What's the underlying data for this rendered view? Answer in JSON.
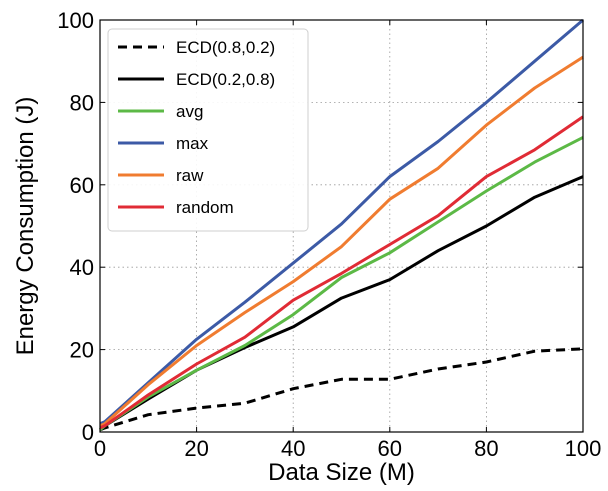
{
  "chart_data": {
    "type": "line",
    "xlabel": "Data Size (M)",
    "ylabel": "Energy Consumption (J)",
    "xlim": [
      0,
      100
    ],
    "ylim": [
      0,
      100
    ],
    "xticks": [
      0,
      20,
      40,
      60,
      80,
      100
    ],
    "yticks": [
      0,
      20,
      40,
      60,
      80,
      100
    ],
    "xtick_labels": [
      "0",
      "20",
      "40",
      "60",
      "80",
      "100"
    ],
    "ytick_labels": [
      "0",
      "20",
      "40",
      "60",
      "80",
      "100"
    ],
    "grid": true,
    "legend_position": "top-left",
    "x": [
      0,
      1,
      10,
      20,
      30,
      40,
      50,
      60,
      70,
      80,
      90,
      100
    ],
    "series": [
      {
        "name": "ECD(0.8,0.2)",
        "color": "#000000",
        "dashed": true,
        "values": [
          0.5,
          1.0,
          4.2,
          5.8,
          7.0,
          10.5,
          12.8,
          12.8,
          15.3,
          17.0,
          19.6,
          20.2
        ]
      },
      {
        "name": "ECD(0.2,0.8)",
        "color": "#000000",
        "dashed": false,
        "values": [
          0.5,
          1.5,
          8.0,
          15.0,
          20.5,
          25.5,
          32.5,
          37.0,
          44.0,
          50.0,
          57.0,
          62.0
        ]
      },
      {
        "name": "avg",
        "color": "#5cb946",
        "dashed": false,
        "values": [
          0.5,
          1.5,
          8.5,
          15.0,
          21.0,
          28.5,
          37.5,
          43.5,
          51.0,
          58.5,
          65.5,
          71.5
        ]
      },
      {
        "name": "max",
        "color": "#3c5aa6",
        "dashed": false,
        "values": [
          2.0,
          2.5,
          12.0,
          22.5,
          31.5,
          41.0,
          50.5,
          62.0,
          70.5,
          80.0,
          90.0,
          100.0
        ]
      },
      {
        "name": "raw",
        "color": "#f07c30",
        "dashed": false,
        "values": [
          1.5,
          2.0,
          11.5,
          21.0,
          29.0,
          36.5,
          45.0,
          56.5,
          64.0,
          74.5,
          83.5,
          91.0
        ]
      },
      {
        "name": "random",
        "color": "#e02b35",
        "dashed": false,
        "values": [
          1.0,
          1.5,
          9.0,
          16.5,
          23.0,
          32.0,
          38.5,
          45.5,
          52.5,
          62.0,
          68.5,
          76.5
        ]
      }
    ]
  }
}
